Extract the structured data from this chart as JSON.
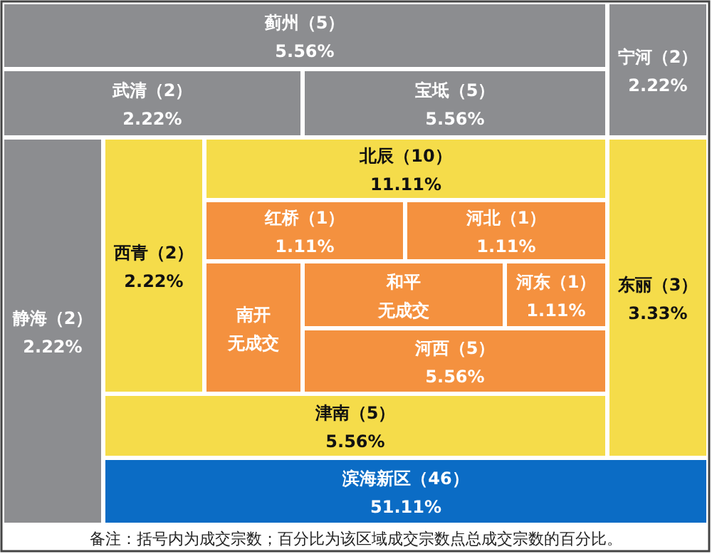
{
  "chart_data": {
    "type": "other",
    "categories": [
      "蓟州（5）",
      "宁河（2）",
      "武清（2）",
      "宝坻（5）",
      "静海（2）",
      "西青（2）",
      "北辰（10）",
      "红桥（1）",
      "河北（1）",
      "南开",
      "和平",
      "河东（1）",
      "河西（5）",
      "东丽（3）",
      "津南（5）",
      "滨海新区（46）"
    ],
    "values": [
      5.56,
      2.22,
      2.22,
      5.56,
      2.22,
      2.22,
      11.11,
      1.11,
      1.11,
      null,
      null,
      1.11,
      5.56,
      3.33,
      5.56,
      51.11
    ],
    "value_labels": [
      "5.56%",
      "2.22%",
      "2.22%",
      "5.56%",
      "2.22%",
      "2.22%",
      "11.11%",
      "1.11%",
      "1.11%",
      "无成交",
      "无成交",
      "1.11%",
      "5.56%",
      "3.33%",
      "5.56%",
      "51.11%"
    ],
    "colors": [
      "#8c8d90",
      "#8c8d90",
      "#8c8d90",
      "#8c8d90",
      "#8c8d90",
      "#f5dc4a",
      "#f5dc4a",
      "#f4913f",
      "#f4913f",
      "#f4913f",
      "#f4913f",
      "#f4913f",
      "#f4913f",
      "#f5dc4a",
      "#f5dc4a",
      "#0b6cc5"
    ],
    "annotations": [
      "备注：括号内为成交宗数；百分比为该区域成交宗数点总成交宗数的百分比。"
    ]
  }
}
